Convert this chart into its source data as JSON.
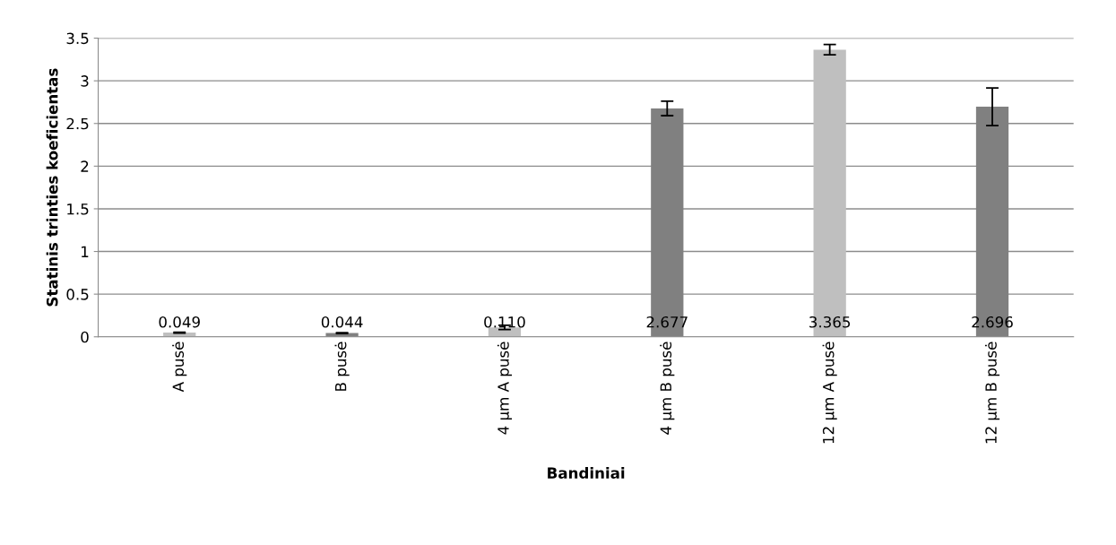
{
  "chart_data": {
    "type": "bar",
    "xlabel": "Bandiniai",
    "ylabel": "Statinis trinties koeficientas",
    "categories": [
      "A pusė",
      "B pusė",
      "4 µm A pusė",
      "4 µm B pusė",
      "12 µm A pusė",
      "12 µm B pusė"
    ],
    "values": [
      0.049,
      0.044,
      0.11,
      2.677,
      3.365,
      2.696
    ],
    "colors": [
      "#bfbfbf",
      "#808080",
      "#bfbfbf",
      "#808080",
      "#bfbfbf",
      "#808080"
    ],
    "errors": [
      0.005,
      0.005,
      0.025,
      0.085,
      0.06,
      0.22
    ],
    "value_labels": [
      "0.049",
      "0.044",
      "0.110",
      "2.677",
      "3.365",
      "2.696"
    ],
    "ylim": [
      0,
      3.5
    ],
    "yticks": [
      0,
      0.5,
      1,
      1.5,
      2,
      2.5,
      3,
      3.5
    ],
    "grid": "y"
  }
}
